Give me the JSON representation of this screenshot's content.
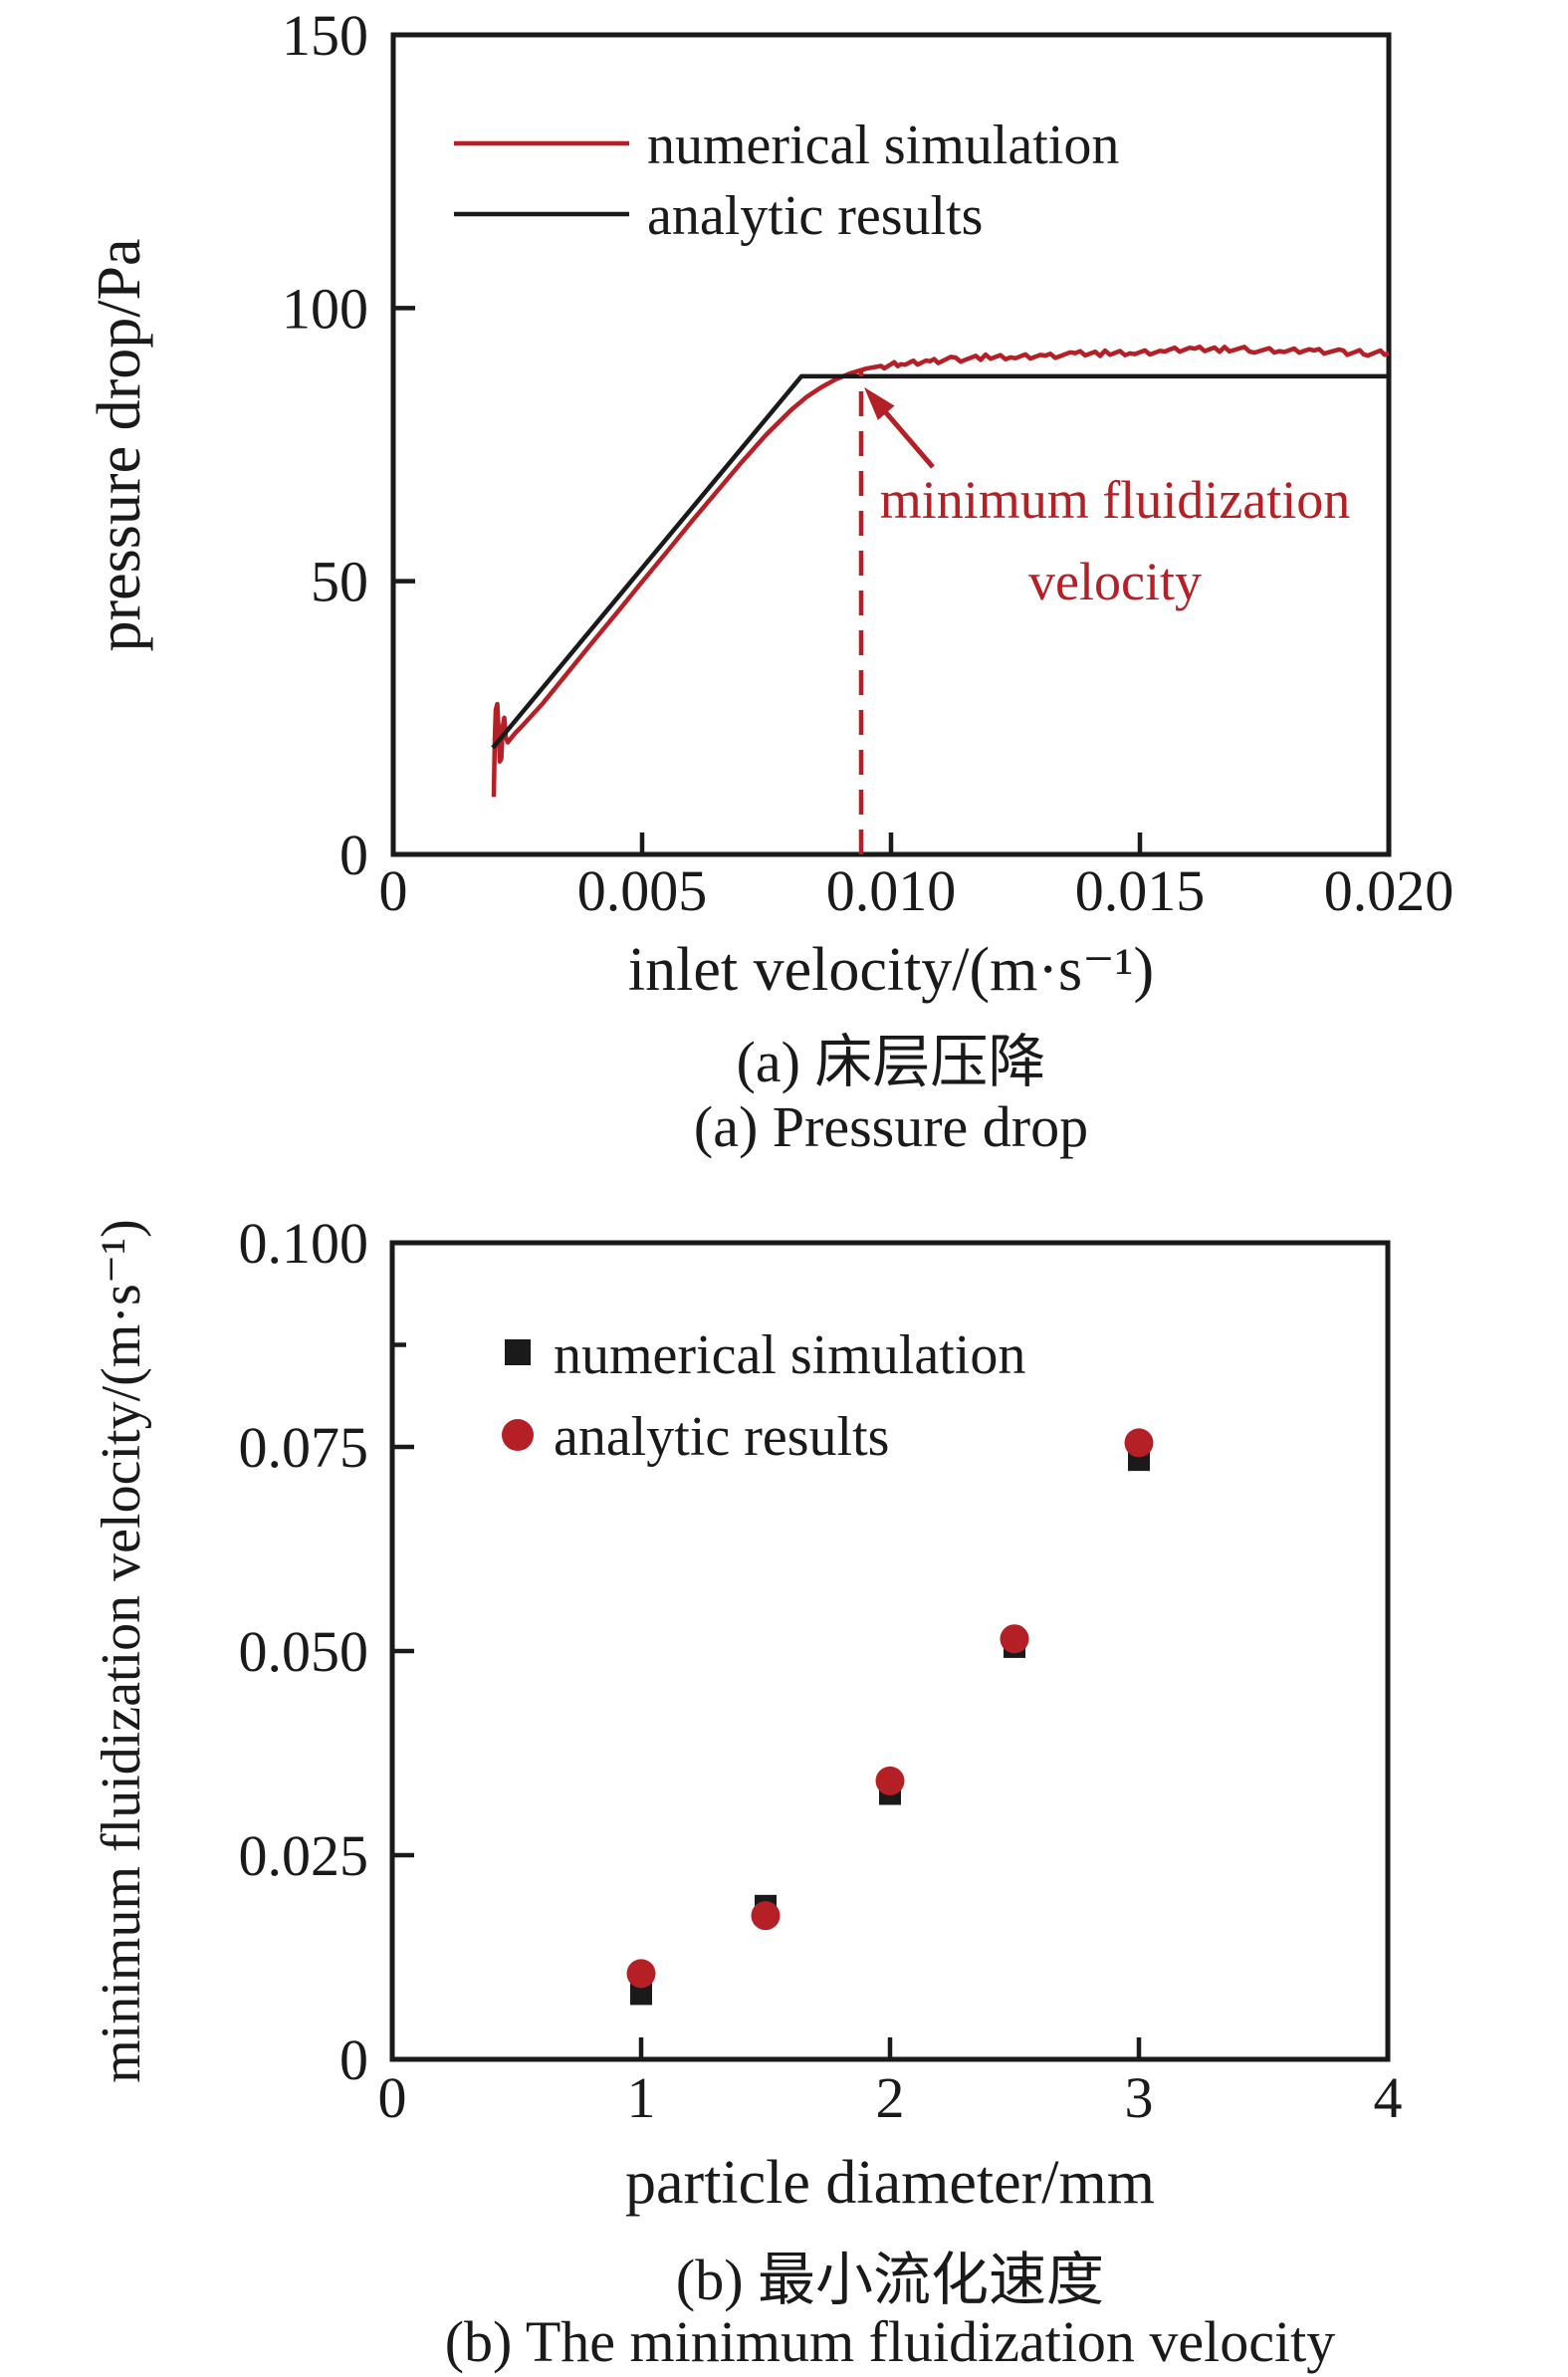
{
  "figure": {
    "background": "#ffffff",
    "accent_red": "#b42025",
    "line_black": "#1a1a1a"
  },
  "chart_data": [
    {
      "id": "pressure-drop",
      "type": "line",
      "title_cn": "(a) 床层压降",
      "title_en": "(a) Pressure drop",
      "xlabel": "inlet velocity/(m·s⁻¹)",
      "ylabel": "pressure drop/Pa",
      "xlim": [
        0,
        0.02
      ],
      "ylim": [
        0,
        150
      ],
      "grid": false,
      "legend_position": "upper-left-inside",
      "xticks": [
        {
          "v": 0,
          "label": "0",
          "tick": false
        },
        {
          "v": 0.005,
          "label": "0.005",
          "tick": true
        },
        {
          "v": 0.01,
          "label": "0.010",
          "tick": true
        },
        {
          "v": 0.015,
          "label": "0.015",
          "tick": true
        },
        {
          "v": 0.02,
          "label": "0.020",
          "tick": false
        }
      ],
      "yticks": [
        {
          "v": 0,
          "label": "0",
          "tick": false
        },
        {
          "v": 50,
          "label": "50",
          "tick": true
        },
        {
          "v": 100,
          "label": "100",
          "tick": true
        },
        {
          "v": 150,
          "label": "150",
          "tick": false
        }
      ],
      "legend": [
        {
          "label": "numerical simulation",
          "color": "#b42025",
          "marker": "line"
        },
        {
          "label": "analytic results",
          "color": "#1a1a1a",
          "marker": "line"
        }
      ],
      "series": [
        {
          "name": "numerical simulation",
          "color": "#b42025",
          "width": 4.5,
          "noise": {
            "amp": 0.55,
            "from": 0.0099,
            "substeps": 6
          },
          "points": [
            [
              0.00202,
              10.5
            ],
            [
              0.00203,
              16
            ],
            [
              0.00204,
              21
            ],
            [
              0.00206,
              26.5
            ],
            [
              0.00209,
              27.5
            ],
            [
              0.00212,
              22
            ],
            [
              0.00214,
              17
            ],
            [
              0.00217,
              17.5
            ],
            [
              0.0022,
              23.5
            ],
            [
              0.00223,
              25
            ],
            [
              0.00226,
              21.5
            ],
            [
              0.0023,
              20.5
            ],
            [
              0.00236,
              21.2
            ],
            [
              0.00245,
              22.2
            ],
            [
              0.0026,
              23.6
            ],
            [
              0.003,
              27.6
            ],
            [
              0.0035,
              33.2
            ],
            [
              0.004,
              38.8
            ],
            [
              0.0045,
              44.3
            ],
            [
              0.005,
              49.9
            ],
            [
              0.0055,
              55.4
            ],
            [
              0.006,
              61.0
            ],
            [
              0.0065,
              66.4
            ],
            [
              0.007,
              71.8
            ],
            [
              0.0075,
              76.9
            ],
            [
              0.008,
              81.4
            ],
            [
              0.0083,
              83.7
            ],
            [
              0.0086,
              85.5
            ],
            [
              0.0089,
              87.0
            ],
            [
              0.0092,
              88.1
            ],
            [
              0.0095,
              88.9
            ],
            [
              0.0098,
              89.4
            ],
            [
              0.0102,
              89.8
            ],
            [
              0.0107,
              90.2
            ],
            [
              0.0112,
              90.6
            ],
            [
              0.0118,
              90.9
            ],
            [
              0.0124,
              91.1
            ],
            [
              0.013,
              91.3
            ],
            [
              0.0136,
              91.5
            ],
            [
              0.0142,
              91.7
            ],
            [
              0.0148,
              91.9
            ],
            [
              0.0154,
              92.1
            ],
            [
              0.016,
              92.4
            ],
            [
              0.0166,
              92.5
            ],
            [
              0.0172,
              92.3
            ],
            [
              0.0178,
              92.1
            ],
            [
              0.0184,
              92.2
            ],
            [
              0.019,
              91.9
            ],
            [
              0.0195,
              91.8
            ],
            [
              0.02,
              91.8
            ]
          ]
        },
        {
          "name": "analytic results",
          "color": "#1a1a1a",
          "width": 4.5,
          "points": [
            [
              0.002,
              19.5
            ],
            [
              0.0082,
              87.5
            ],
            [
              0.02,
              87.5
            ]
          ]
        }
      ],
      "annotation": {
        "lines": [
          "minimum fluidization",
          "velocity"
        ],
        "color": "#b42025",
        "dash_x": 0.0094,
        "dash_top": 88.6,
        "arrow": {
          "from": [
            0.01084,
            70.9
          ],
          "to": [
            0.00946,
            85.5
          ]
        }
      }
    },
    {
      "id": "minimum-fluidization-velocity",
      "type": "scatter",
      "title_cn": "(b) 最小流化速度",
      "title_en": "(b) The minimum fluidization velocity",
      "xlabel": "particle diameter/mm",
      "ylabel": "minimum fluidization velocity/(m·s⁻¹)",
      "xlim": [
        0,
        4
      ],
      "ylim": [
        0,
        0.1
      ],
      "grid": false,
      "legend_position": "upper-left-inside",
      "xticks": [
        {
          "v": 0,
          "label": "0",
          "tick": false
        },
        {
          "v": 1,
          "label": "1",
          "tick": true
        },
        {
          "v": 2,
          "label": "2",
          "tick": true
        },
        {
          "v": 3,
          "label": "3",
          "tick": true
        },
        {
          "v": 4,
          "label": "4",
          "tick": false
        }
      ],
      "yticks": [
        {
          "v": 0,
          "label": "0",
          "tick": false
        },
        {
          "v": 0.025,
          "label": "0.025",
          "tick": true
        },
        {
          "v": 0.05,
          "label": "0.050",
          "tick": true
        },
        {
          "v": 0.075,
          "label": "0.075",
          "tick": true
        },
        {
          "v": 0.1,
          "label": "0.100",
          "tick": false
        }
      ],
      "minor_yticks": [
        0.0875
      ],
      "legend": [
        {
          "label": "numerical simulation",
          "color": "#1a1a1a",
          "marker": "square"
        },
        {
          "label": "analytic results",
          "color": "#b42025",
          "marker": "circle"
        }
      ],
      "series": [
        {
          "name": "numerical simulation",
          "marker": "square",
          "color": "#1a1a1a",
          "size": 22,
          "points": [
            [
              1,
              0.008
            ],
            [
              1.5,
              0.0188
            ],
            [
              2,
              0.0325
            ],
            [
              2.5,
              0.0505
            ],
            [
              3,
              0.0734
            ]
          ]
        },
        {
          "name": "analytic results",
          "marker": "circle",
          "color": "#b42025",
          "size": 29,
          "points": [
            [
              1,
              0.0105
            ],
            [
              1.5,
              0.0176
            ],
            [
              2,
              0.0341
            ],
            [
              2.5,
              0.0515
            ],
            [
              3,
              0.0755
            ]
          ]
        }
      ]
    }
  ]
}
